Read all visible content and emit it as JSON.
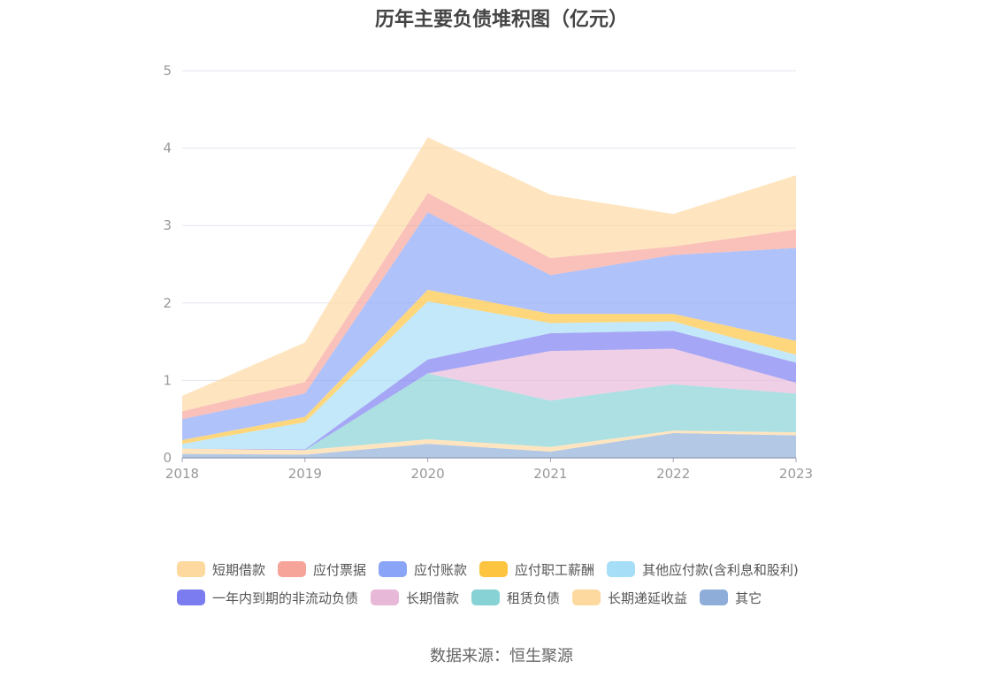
{
  "chart_data": {
    "type": "area",
    "stacked": true,
    "title": "历年主要负债堆积图（亿元）",
    "x": [
      "2018",
      "2019",
      "2020",
      "2021",
      "2022",
      "2023"
    ],
    "ylim": [
      0,
      5
    ],
    "yticks": [
      "0",
      "1",
      "2",
      "3",
      "4",
      "5"
    ],
    "grid": true,
    "legend_position": "bottom",
    "series": [
      {
        "name": "其它",
        "color": "#8eaed9",
        "values": [
          0.05,
          0.04,
          0.18,
          0.08,
          0.32,
          0.29
        ]
      },
      {
        "name": "长期递延收益",
        "color": "#fdd9a0",
        "values": [
          0.07,
          0.06,
          0.06,
          0.06,
          0.03,
          0.04
        ]
      },
      {
        "name": "租赁负债",
        "color": "#86d2d5",
        "values": [
          0.0,
          0.0,
          0.85,
          0.6,
          0.6,
          0.5
        ]
      },
      {
        "name": "长期借款",
        "color": "#e8b8d8",
        "values": [
          0.0,
          0.0,
          0.0,
          0.64,
          0.46,
          0.14
        ]
      },
      {
        "name": "一年内到期的非流动负债",
        "color": "#7b7cf0",
        "values": [
          0.0,
          0.01,
          0.18,
          0.23,
          0.23,
          0.26
        ]
      },
      {
        "name": "其他应付款(含利息和股利)",
        "color": "#a6ddf7",
        "values": [
          0.06,
          0.35,
          0.75,
          0.13,
          0.12,
          0.1
        ]
      },
      {
        "name": "应付职工薪酬",
        "color": "#fdc440",
        "values": [
          0.05,
          0.07,
          0.15,
          0.12,
          0.1,
          0.18
        ]
      },
      {
        "name": "应付账款",
        "color": "#8aa5f8",
        "values": [
          0.27,
          0.3,
          1.0,
          0.5,
          0.76,
          1.2
        ]
      },
      {
        "name": "应付票据",
        "color": "#f6a39a",
        "values": [
          0.1,
          0.15,
          0.25,
          0.22,
          0.11,
          0.24
        ]
      },
      {
        "name": "短期借款",
        "color": "#fdd9a0",
        "values": [
          0.2,
          0.51,
          0.72,
          0.82,
          0.42,
          0.7
        ]
      }
    ]
  },
  "legend_order": [
    [
      "短期借款",
      "应付票据",
      "应付账款",
      "应付职工薪酬",
      "其他应付款(含利息和股利)"
    ],
    [
      "一年内到期的非流动负债",
      "长期借款",
      "租赁负债",
      "长期递延收益",
      "其它"
    ]
  ],
  "source": "数据来源：恒生聚源"
}
